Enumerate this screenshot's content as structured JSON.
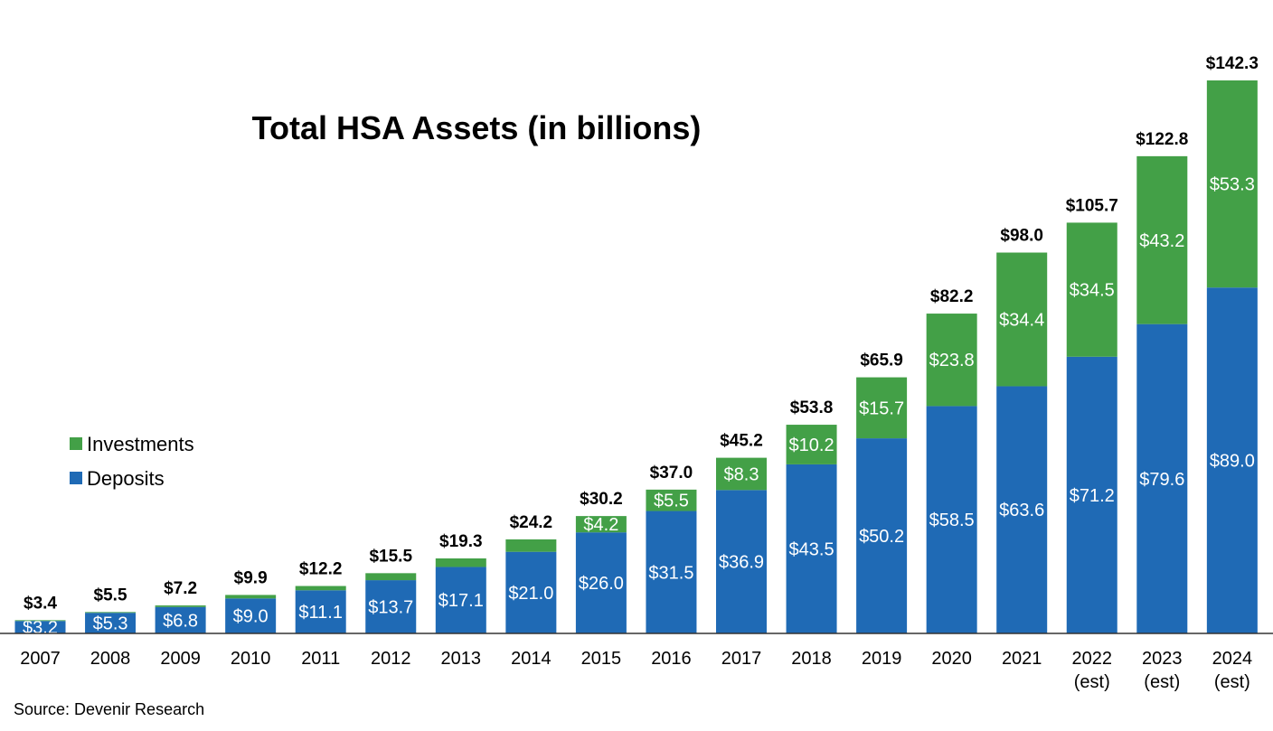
{
  "chart_data": {
    "type": "bar",
    "stacked": true,
    "title": "Total HSA Assets (in billions)",
    "source": "Source: Devenir Research",
    "categories": [
      [
        "2007"
      ],
      [
        "2008"
      ],
      [
        "2009"
      ],
      [
        "2010"
      ],
      [
        "2011"
      ],
      [
        "2012"
      ],
      [
        "2013"
      ],
      [
        "2014"
      ],
      [
        "2015"
      ],
      [
        "2016"
      ],
      [
        "2017"
      ],
      [
        "2018"
      ],
      [
        "2019"
      ],
      [
        "2020"
      ],
      [
        "2021"
      ],
      [
        "2022",
        "(est)"
      ],
      [
        "2023",
        "(est)"
      ],
      [
        "2024",
        "(est)"
      ]
    ],
    "series": [
      {
        "name": "Deposits",
        "color": "#1f6ab5",
        "values": [
          3.2,
          5.3,
          6.8,
          9.0,
          11.1,
          13.7,
          17.1,
          21.0,
          26.0,
          31.5,
          36.9,
          43.5,
          50.2,
          58.5,
          63.6,
          71.2,
          79.6,
          89.0
        ],
        "labels": [
          "$3.2",
          "$5.3",
          "$6.8",
          "$9.0",
          "$11.1",
          "$13.7",
          "$17.1",
          "$21.0",
          "$26.0",
          "$31.5",
          "$36.9",
          "$43.5",
          "$50.2",
          "$58.5",
          "$63.6",
          "$71.2",
          "$79.6",
          "$89.0"
        ]
      },
      {
        "name": "Investments",
        "color": "#43a047",
        "values": [
          0.2,
          0.2,
          0.4,
          0.9,
          1.1,
          1.8,
          2.2,
          3.2,
          4.2,
          5.5,
          8.3,
          10.2,
          15.7,
          23.8,
          34.4,
          34.5,
          43.2,
          53.3
        ],
        "labels": [
          "",
          "",
          "",
          "",
          "",
          "",
          "",
          "",
          "$4.2",
          "$5.5",
          "$8.3",
          "$10.2",
          "$15.7",
          "$23.8",
          "$34.4",
          "$34.5",
          "$43.2",
          "$53.3"
        ]
      }
    ],
    "totals": [
      3.4,
      5.5,
      7.2,
      9.9,
      12.2,
      15.5,
      19.3,
      24.2,
      30.2,
      37.0,
      45.2,
      53.8,
      65.9,
      82.2,
      98.0,
      105.7,
      122.8,
      142.3
    ],
    "total_labels": [
      "$3.4",
      "$5.5",
      "$7.2",
      "$9.9",
      "$12.2",
      "$15.5",
      "$19.3",
      "$24.2",
      "$30.2",
      "$37.0",
      "$45.2",
      "$53.8",
      "$65.9",
      "$82.2",
      "$98.0",
      "$105.7",
      "$122.8",
      "$142.3"
    ],
    "legend": {
      "position": "left-middle",
      "items": [
        {
          "name": "Investments",
          "color": "#43a047"
        },
        {
          "name": "Deposits",
          "color": "#1f6ab5"
        }
      ]
    },
    "ylim": [
      0,
      142.3
    ],
    "grid": false
  }
}
